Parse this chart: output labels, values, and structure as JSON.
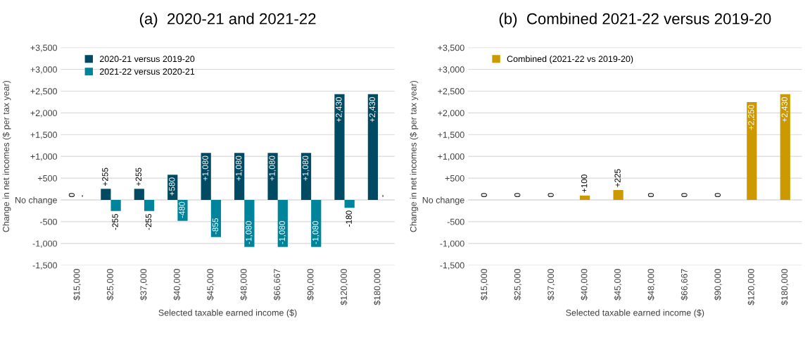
{
  "chart_data": [
    {
      "type": "bar",
      "title": "(a)  2020-21 and 2021-22",
      "xlabel": "Selected taxable earned income ($)",
      "ylabel": "Change in net incomes ($ per tax year)",
      "categories": [
        "$15,000",
        "$25,000",
        "$37,000",
        "$40,000",
        "$45,000",
        "$48,000",
        "$66,667",
        "$90,000",
        "$120,000",
        "$180,000"
      ],
      "series": [
        {
          "name": "2020-21 versus 2019-20",
          "color": "#004b63",
          "values": [
            0,
            255,
            255,
            580,
            1080,
            1080,
            1080,
            1080,
            2430,
            2430
          ],
          "value_labels": [
            "0",
            "+255",
            "+255",
            "+580",
            "+1,080",
            "+1,080",
            "+1,080",
            "+1,080",
            "+2,430",
            "+2,430"
          ]
        },
        {
          "name": "2021-22 versus 2020-21",
          "color": "#00849c",
          "values": [
            0,
            -255,
            -255,
            -480,
            -855,
            -1080,
            -1080,
            -1080,
            -180,
            0
          ],
          "value_labels": [
            "-",
            "-255",
            "-255",
            "-480",
            "-855",
            "-1,080",
            "-1,080",
            "-1,080",
            "-180",
            "-"
          ]
        }
      ],
      "ylim": [
        -1500,
        3500
      ],
      "yticks": [
        {
          "value": -1500,
          "label": "-1,500"
        },
        {
          "value": -1000,
          "label": "-1,000"
        },
        {
          "value": -500,
          "label": "-500"
        },
        {
          "value": 0,
          "label": "No change"
        },
        {
          "value": 500,
          "label": "+500"
        },
        {
          "value": 1000,
          "label": "+1,000"
        },
        {
          "value": 1500,
          "label": "+1,500"
        },
        {
          "value": 2000,
          "label": "+2,000"
        },
        {
          "value": 2500,
          "label": "+2,500"
        },
        {
          "value": 3000,
          "label": "+3,000"
        },
        {
          "value": 3500,
          "label": "+3,500"
        }
      ],
      "grid": "y",
      "legend": "top left"
    },
    {
      "type": "bar",
      "title": "(b)  Combined 2021-22 versus 2019-20",
      "xlabel": "Selected taxable earned income ($)",
      "ylabel": "Change in net incomes ($ per tax year)",
      "categories": [
        "$15,000",
        "$25,000",
        "$37,000",
        "$40,000",
        "$45,000",
        "$48,000",
        "$66,667",
        "$90,000",
        "$120,000",
        "$180,000"
      ],
      "series": [
        {
          "name": "Combined (2021-22 vs 2019-20)",
          "color": "#cc9900",
          "values": [
            0,
            0,
            0,
            100,
            225,
            0,
            0,
            0,
            2250,
            2430
          ],
          "value_labels": [
            "0",
            "0",
            "0",
            "+100",
            "+225",
            "0",
            "0",
            "0",
            "+2,250",
            "+2,430"
          ]
        }
      ],
      "ylim": [
        -1500,
        3500
      ],
      "yticks": [
        {
          "value": -1500,
          "label": "-1,500"
        },
        {
          "value": -1000,
          "label": "-1,000"
        },
        {
          "value": -500,
          "label": "-500"
        },
        {
          "value": 0,
          "label": "No change"
        },
        {
          "value": 500,
          "label": "+500"
        },
        {
          "value": 1000,
          "label": "+1,000"
        },
        {
          "value": 1500,
          "label": "+1,500"
        },
        {
          "value": 2000,
          "label": "+2,000"
        },
        {
          "value": 2500,
          "label": "+2,500"
        },
        {
          "value": 3000,
          "label": "+3,000"
        },
        {
          "value": 3500,
          "label": "+3,500"
        }
      ],
      "grid": "y",
      "legend": "top left"
    }
  ]
}
